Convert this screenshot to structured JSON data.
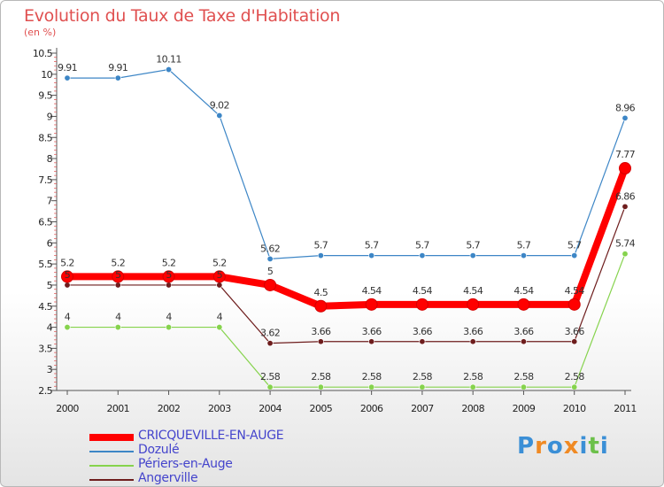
{
  "header": {
    "title": "Evolution du Taux de Taxe d'Habitation",
    "subtitle": "(en %)"
  },
  "logo": {
    "text": "Proxiti",
    "colors": [
      "#3b8fd6",
      "#f08a24",
      "#3b8fd6",
      "#f08a24",
      "#3b8fd6",
      "#6cc04a",
      "#3b8fd6"
    ]
  },
  "chart_data": {
    "type": "line",
    "title": "Evolution du Taux de Taxe d'Habitation",
    "subtitle": "(en %)",
    "xlabel": "",
    "ylabel": "",
    "x": [
      "2000",
      "2001",
      "2002",
      "2003",
      "2004",
      "2005",
      "2006",
      "2007",
      "2008",
      "2009",
      "2010",
      "2011"
    ],
    "ylim": [
      2.5,
      10.5
    ],
    "yticks": [
      "2.5",
      "3",
      "3.5",
      "4",
      "4.5",
      "5",
      "5.5",
      "6",
      "6.5",
      "7",
      "7.5",
      "8",
      "8.5",
      "9",
      "9.5",
      "10",
      "10.5"
    ],
    "grid": false,
    "legend_position": "bottom-left",
    "series": [
      {
        "name": "CRICQUEVILLE-EN-AUGE",
        "color": "#ff0000",
        "highlight": true,
        "values": [
          5.2,
          5.2,
          5.2,
          5.2,
          5,
          4.5,
          4.54,
          4.54,
          4.54,
          4.54,
          4.54,
          7.77
        ],
        "labels": [
          "5.2",
          "5.2",
          "5.2",
          "5.2",
          "5",
          "4.5",
          "4.54",
          "4.54",
          "4.54",
          "4.54",
          "4.54",
          "7.77"
        ]
      },
      {
        "name": "Dozulé",
        "color": "#3d86c6",
        "highlight": false,
        "values": [
          9.91,
          9.91,
          10.11,
          9.02,
          5.62,
          5.7,
          5.7,
          5.7,
          5.7,
          5.7,
          5.7,
          8.96
        ],
        "labels": [
          "9.91",
          "9.91",
          "10.11",
          "9.02",
          "5.62",
          "5.7",
          "5.7",
          "5.7",
          "5.7",
          "5.7",
          "5.7",
          "8.96"
        ]
      },
      {
        "name": "Périers-en-Auge",
        "color": "#86d34d",
        "highlight": false,
        "values": [
          4,
          4,
          4,
          4,
          2.58,
          2.58,
          2.58,
          2.58,
          2.58,
          2.58,
          2.58,
          5.74
        ],
        "labels": [
          "4",
          "4",
          "4",
          "4",
          "2.58",
          "2.58",
          "2.58",
          "2.58",
          "2.58",
          "2.58",
          "2.58",
          "5.74"
        ]
      },
      {
        "name": "Angerville",
        "color": "#6e1d1d",
        "highlight": false,
        "values": [
          5,
          5,
          5,
          5,
          3.62,
          3.66,
          3.66,
          3.66,
          3.66,
          3.66,
          3.66,
          6.86
        ],
        "labels": [
          "5",
          "5",
          "5",
          "5",
          "3.62",
          "3.66",
          "3.66",
          "3.66",
          "3.66",
          "3.66",
          "3.66",
          "6.86"
        ]
      }
    ]
  }
}
